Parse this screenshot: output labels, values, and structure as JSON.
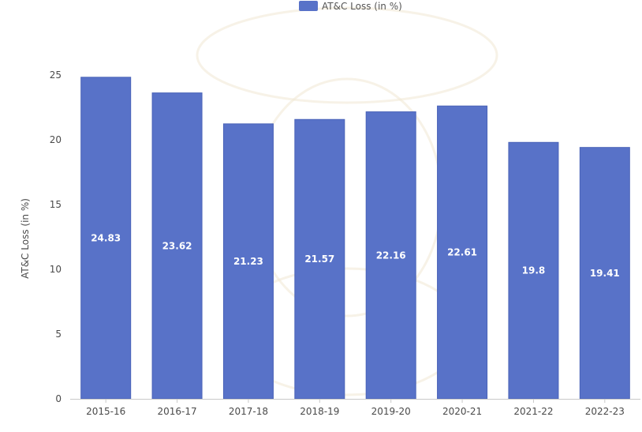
{
  "chart_data": {
    "type": "bar",
    "categories": [
      "2015-16",
      "2016-17",
      "2017-18",
      "2018-19",
      "2019-20",
      "2020-21",
      "2021-22",
      "2022-23"
    ],
    "series": [
      {
        "name": "AT&C Loss (in %)",
        "values": [
          24.83,
          23.62,
          21.23,
          21.57,
          22.16,
          22.61,
          19.8,
          19.41
        ]
      }
    ],
    "value_labels": [
      "24.83",
      "23.62",
      "21.23",
      "21.57",
      "22.16",
      "22.61",
      "19.8",
      "19.41"
    ],
    "ylabel": "AT&C Loss (in %)",
    "ylim": [
      0,
      25
    ],
    "yticks": [
      "0",
      "5",
      "10",
      "15",
      "20",
      "25"
    ],
    "ytick_values": [
      0,
      5,
      10,
      15,
      20,
      25
    ],
    "grid": false,
    "legend_position": "top-center",
    "colors": {
      "bar": "#5872c8",
      "bar_edge": "#4a63b8",
      "axis": "#c9c9c9"
    }
  }
}
